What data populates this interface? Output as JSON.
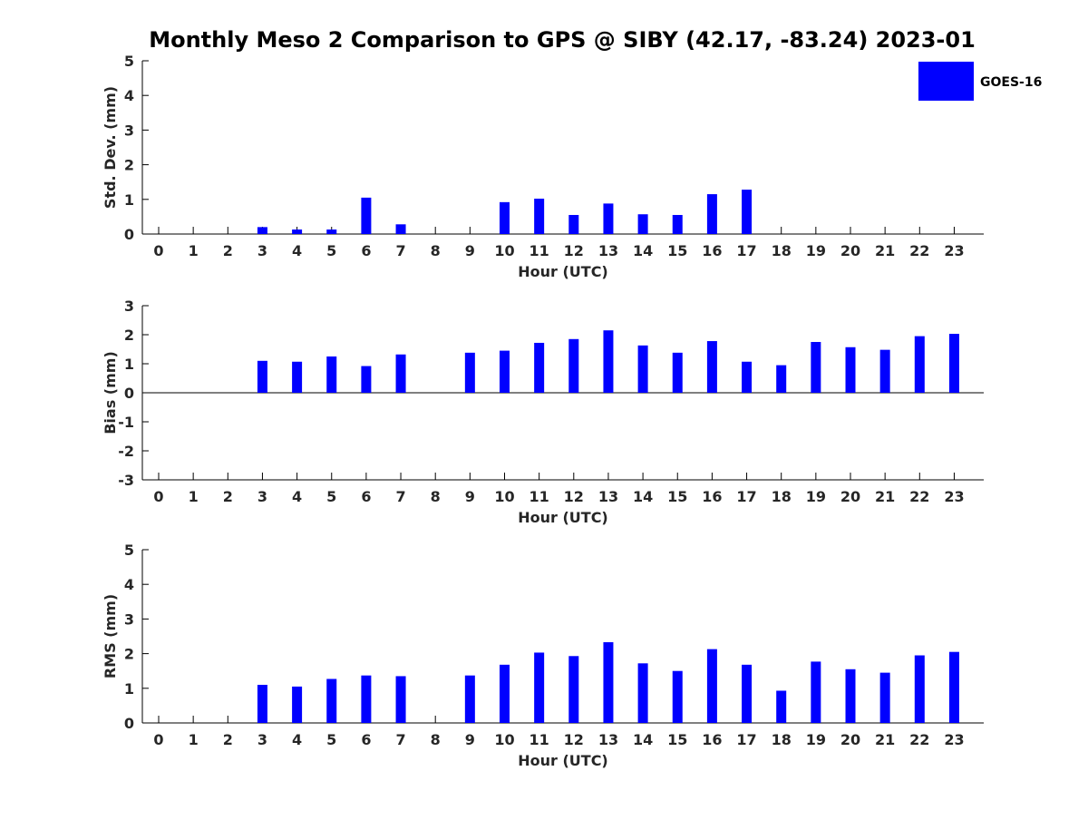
{
  "colors": {
    "bar": "#0000ff",
    "axis": "#000000",
    "tick_text": "#262626"
  },
  "title": "Monthly Meso 2 Comparison to GPS @ SIBY (42.17, -83.24) 2023-01",
  "legend": {
    "label": "GOES-16",
    "color": "#0000ff",
    "placement": "top-right"
  },
  "chart_data": [
    {
      "type": "bar",
      "xlabel": "Hour (UTC)",
      "ylabel": "Std. Dev. (mm)",
      "categories": [
        "0",
        "1",
        "2",
        "3",
        "4",
        "5",
        "6",
        "7",
        "8",
        "9",
        "10",
        "11",
        "12",
        "13",
        "14",
        "15",
        "16",
        "17",
        "18",
        "19",
        "20",
        "21",
        "22",
        "23"
      ],
      "yticks": [
        "0",
        "1",
        "2",
        "3",
        "4",
        "5"
      ],
      "ylim": [
        0,
        5
      ],
      "grid": false,
      "series": [
        {
          "name": "GOES-16",
          "values": [
            null,
            null,
            null,
            0.2,
            0.13,
            0.13,
            1.05,
            0.28,
            null,
            null,
            0.92,
            1.02,
            0.55,
            0.88,
            0.57,
            0.55,
            1.15,
            1.28,
            null,
            null,
            null,
            null,
            null,
            null
          ]
        }
      ]
    },
    {
      "type": "bar",
      "xlabel": "Hour (UTC)",
      "ylabel": "Bias (mm)",
      "categories": [
        "0",
        "1",
        "2",
        "3",
        "4",
        "5",
        "6",
        "7",
        "8",
        "9",
        "10",
        "11",
        "12",
        "13",
        "14",
        "15",
        "16",
        "17",
        "18",
        "19",
        "20",
        "21",
        "22",
        "23"
      ],
      "yticks": [
        "-3",
        "-2",
        "-1",
        "0",
        "1",
        "2",
        "3"
      ],
      "ylim": [
        -3,
        3
      ],
      "grid": false,
      "series": [
        {
          "name": "GOES-16",
          "values": [
            null,
            null,
            null,
            1.1,
            1.07,
            1.25,
            0.92,
            1.32,
            null,
            1.38,
            1.45,
            1.72,
            1.85,
            2.15,
            1.63,
            1.38,
            1.78,
            1.07,
            0.95,
            1.75,
            1.57,
            1.48,
            1.95,
            2.03
          ]
        }
      ]
    },
    {
      "type": "bar",
      "xlabel": "Hour (UTC)",
      "ylabel": "RMS (mm)",
      "categories": [
        "0",
        "1",
        "2",
        "3",
        "4",
        "5",
        "6",
        "7",
        "8",
        "9",
        "10",
        "11",
        "12",
        "13",
        "14",
        "15",
        "16",
        "17",
        "18",
        "19",
        "20",
        "21",
        "22",
        "23"
      ],
      "yticks": [
        "0",
        "1",
        "2",
        "3",
        "4",
        "5"
      ],
      "ylim": [
        0,
        5
      ],
      "grid": false,
      "series": [
        {
          "name": "GOES-16",
          "values": [
            null,
            null,
            null,
            1.1,
            1.05,
            1.27,
            1.37,
            1.35,
            null,
            1.37,
            1.68,
            2.03,
            1.93,
            2.33,
            1.72,
            1.5,
            2.13,
            1.68,
            0.93,
            1.77,
            1.55,
            1.45,
            1.95,
            2.05
          ]
        }
      ]
    }
  ]
}
